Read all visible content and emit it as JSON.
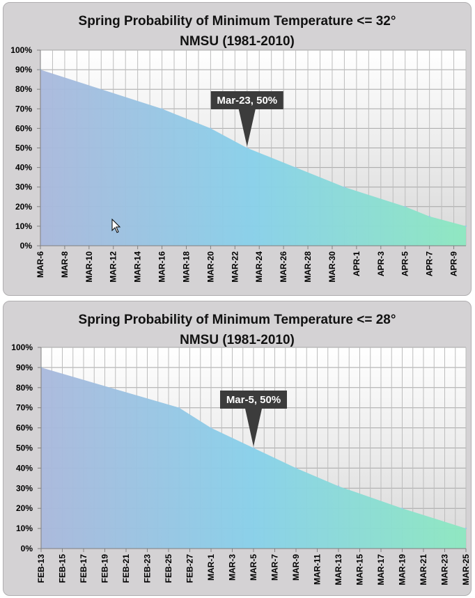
{
  "chart_data": [
    {
      "type": "area",
      "title": "Spring Probability of Minimum Temperature <= 32°",
      "subtitle": "NMSU (1981-2010)",
      "xlabel": "",
      "ylabel": "",
      "ylim": [
        0,
        100
      ],
      "yticks": [
        "0%",
        "10%",
        "20%",
        "30%",
        "40%",
        "50%",
        "60%",
        "70%",
        "80%",
        "90%",
        "100%"
      ],
      "x_ticks": [
        "MAR-6",
        "MAR-8",
        "MAR-10",
        "MAR-12",
        "MAR-14",
        "MAR-16",
        "MAR-18",
        "MAR-20",
        "MAR-22",
        "MAR-24",
        "MAR-26",
        "MAR-28",
        "MAR-30",
        "APR-1",
        "APR-3",
        "APR-5",
        "APR-7",
        "APR-9"
      ],
      "x_days": 35,
      "series": [
        {
          "name": "Probability",
          "x": [
            0,
            10,
            14,
            17,
            21,
            25,
            30,
            32,
            35
          ],
          "values": [
            90,
            70,
            60,
            50,
            40,
            30,
            20,
            15,
            10
          ]
        }
      ],
      "annotation": {
        "label": "Mar-23, 50%",
        "x": 17,
        "y": 50
      },
      "grid": true
    },
    {
      "type": "area",
      "title": "Spring Probability of Minimum Temperature <= 28°",
      "subtitle": "NMSU (1981-2010)",
      "xlabel": "",
      "ylabel": "",
      "ylim": [
        0,
        100
      ],
      "yticks": [
        "0%",
        "10%",
        "20%",
        "30%",
        "40%",
        "50%",
        "60%",
        "70%",
        "80%",
        "90%",
        "100%"
      ],
      "x_ticks": [
        "FEB-13",
        "FEB-15",
        "FEB-17",
        "FEB-19",
        "FEB-21",
        "FEB-23",
        "FEB-25",
        "FEB-27",
        "MAR-1",
        "MAR-3",
        "MAR-5",
        "MAR-7",
        "MAR-9",
        "MAR-11",
        "MAR-13",
        "MAR-15",
        "MAR-17",
        "MAR-19",
        "MAR-21",
        "MAR-23",
        "MAR-25"
      ],
      "x_days": 40,
      "series": [
        {
          "name": "Probability",
          "x": [
            0,
            13,
            16,
            20,
            24,
            28,
            34,
            40
          ],
          "values": [
            90,
            70,
            60,
            50,
            40,
            31,
            20,
            10
          ]
        }
      ],
      "annotation": {
        "label": "Mar-5, 50%",
        "x": 20,
        "y": 50
      },
      "grid": true
    }
  ]
}
